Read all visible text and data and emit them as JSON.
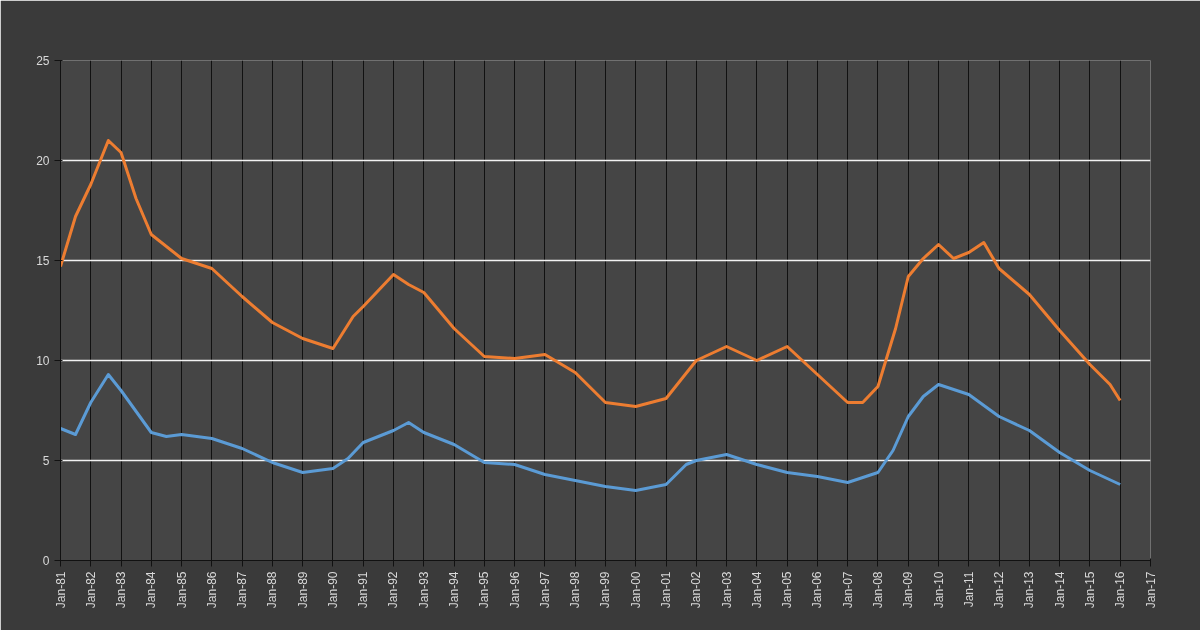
{
  "chart_data": {
    "type": "line",
    "xlim": [
      "1981-01",
      "2017-01"
    ],
    "xticks": [
      {
        "value": "1981-01",
        "label": "Jan-81"
      },
      {
        "value": "1982-01",
        "label": "Jan-82"
      },
      {
        "value": "1983-01",
        "label": "Jan-83"
      },
      {
        "value": "1984-01",
        "label": "Jan-84"
      },
      {
        "value": "1985-01",
        "label": "Jan-85"
      },
      {
        "value": "1986-01",
        "label": "Jan-86"
      },
      {
        "value": "1987-01",
        "label": "Jan-87"
      },
      {
        "value": "1988-01",
        "label": "Jan-88"
      },
      {
        "value": "1989-01",
        "label": "Jan-89"
      },
      {
        "value": "1990-01",
        "label": "Jan-90"
      },
      {
        "value": "1991-01",
        "label": "Jan-91"
      },
      {
        "value": "1992-01",
        "label": "Jan-92"
      },
      {
        "value": "1993-01",
        "label": "Jan-93"
      },
      {
        "value": "1994-01",
        "label": "Jan-94"
      },
      {
        "value": "1995-01",
        "label": "Jan-95"
      },
      {
        "value": "1996-01",
        "label": "Jan-96"
      },
      {
        "value": "1997-01",
        "label": "Jan-97"
      },
      {
        "value": "1998-01",
        "label": "Jan-98"
      },
      {
        "value": "1999-01",
        "label": "Jan-99"
      },
      {
        "value": "2000-01",
        "label": "Jan-00"
      },
      {
        "value": "2001-01",
        "label": "Jan-01"
      },
      {
        "value": "2002-01",
        "label": "Jan-02"
      },
      {
        "value": "2003-01",
        "label": "Jan-03"
      },
      {
        "value": "2004-01",
        "label": "Jan-04"
      },
      {
        "value": "2005-01",
        "label": "Jan-05"
      },
      {
        "value": "2006-01",
        "label": "Jan-06"
      },
      {
        "value": "2007-01",
        "label": "Jan-07"
      },
      {
        "value": "2008-01",
        "label": "Jan-08"
      },
      {
        "value": "2009-01",
        "label": "Jan-09"
      },
      {
        "value": "2010-01",
        "label": "Jan-10"
      },
      {
        "value": "2011-01",
        "label": "Jan-11"
      },
      {
        "value": "2012-01",
        "label": "Jan-12"
      },
      {
        "value": "2013-01",
        "label": "Jan-13"
      },
      {
        "value": "2014-01",
        "label": "Jan-14"
      },
      {
        "value": "2015-01",
        "label": "Jan-15"
      },
      {
        "value": "2016-01",
        "label": "Jan-16"
      },
      {
        "value": "2017-01",
        "label": "Jan-17"
      }
    ],
    "ylim": [
      0,
      25
    ],
    "yticks": [
      0,
      5,
      10,
      15,
      20,
      25
    ],
    "grid": true,
    "marker": "none",
    "line_style": "solid",
    "series": [
      {
        "color": "#5b9bd5",
        "x": [
          "1981-01",
          "1981-07",
          "1982-01",
          "1982-08",
          "1983-01",
          "1984-01",
          "1984-07",
          "1985-01",
          "1986-01",
          "1987-01",
          "1988-01",
          "1989-01",
          "1990-01",
          "1990-07",
          "1991-01",
          "1992-01",
          "1992-07",
          "1993-01",
          "1994-01",
          "1995-01",
          "1996-01",
          "1997-01",
          "1998-01",
          "1999-01",
          "2000-01",
          "2001-01",
          "2001-09",
          "2002-01",
          "2003-01",
          "2004-01",
          "2005-01",
          "2006-01",
          "2007-01",
          "2008-01",
          "2008-07",
          "2009-01",
          "2009-07",
          "2010-01",
          "2011-01",
          "2012-01",
          "2013-01",
          "2014-01",
          "2015-01",
          "2016-01"
        ],
        "values": [
          6.6,
          6.3,
          7.9,
          9.3,
          8.5,
          6.4,
          6.2,
          6.3,
          6.1,
          5.6,
          4.9,
          4.4,
          4.6,
          5.1,
          5.9,
          6.5,
          6.9,
          6.4,
          5.8,
          4.9,
          4.8,
          4.3,
          4.0,
          3.7,
          3.5,
          3.8,
          4.8,
          5.0,
          5.3,
          4.8,
          4.4,
          4.2,
          3.9,
          4.4,
          5.5,
          7.2,
          8.2,
          8.8,
          8.3,
          7.2,
          6.5,
          5.4,
          4.5,
          3.8
        ]
      },
      {
        "color": "#ed7d31",
        "x": [
          "1981-01",
          "1981-07",
          "1982-01",
          "1982-08",
          "1983-01",
          "1983-07",
          "1984-01",
          "1985-01",
          "1986-01",
          "1987-01",
          "1988-01",
          "1989-01",
          "1990-01",
          "1990-09",
          "1991-01",
          "1992-01",
          "1992-07",
          "1993-01",
          "1994-01",
          "1995-01",
          "1996-01",
          "1997-01",
          "1998-01",
          "1999-01",
          "2000-01",
          "2001-01",
          "2002-01",
          "2003-01",
          "2004-01",
          "2005-01",
          "2006-01",
          "2007-01",
          "2007-07",
          "2008-01",
          "2008-08",
          "2009-01",
          "2009-07",
          "2010-01",
          "2010-07",
          "2011-01",
          "2011-07",
          "2012-01",
          "2013-01",
          "2014-01",
          "2015-01",
          "2015-09",
          "2016-01"
        ],
        "values": [
          14.7,
          17.2,
          18.8,
          21.0,
          20.4,
          18.1,
          16.3,
          15.1,
          14.6,
          13.2,
          11.9,
          11.1,
          10.6,
          12.2,
          12.7,
          14.3,
          13.8,
          13.4,
          11.6,
          10.2,
          10.1,
          10.3,
          9.4,
          7.9,
          7.7,
          8.1,
          10.0,
          10.7,
          10.0,
          10.7,
          9.3,
          7.9,
          7.9,
          8.7,
          11.6,
          14.2,
          15.1,
          15.8,
          15.1,
          15.4,
          15.9,
          14.6,
          13.3,
          11.5,
          9.8,
          8.8,
          8.0
        ]
      }
    ]
  }
}
